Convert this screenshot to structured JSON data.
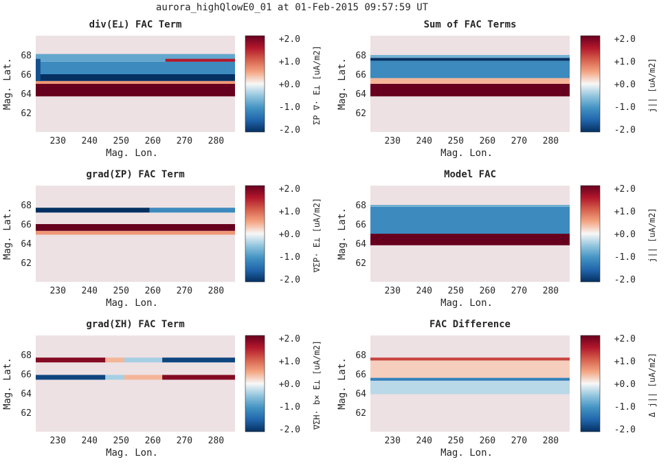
{
  "suptitle": "aurora_highQlowE0_01 at 01-Feb-2015 09:57:59 UT",
  "colors": {
    "background": "#ede1e3",
    "positive_max": "#67001f",
    "negative_max": "#053061",
    "neutral": "#f7f7f7"
  },
  "chart_data": [
    {
      "type": "heatmap",
      "title": "div(E⊥) FAC Term",
      "xlabel": "Mag. Lon.",
      "ylabel": "Mag. Lat.",
      "xticks": [
        "230",
        "240",
        "250",
        "260",
        "270",
        "280"
      ],
      "yticks": [
        "62",
        "64",
        "66",
        "68"
      ],
      "xlim": [
        223,
        286
      ],
      "ylim": [
        60,
        70
      ],
      "colorbar": {
        "label": "ΣP ∇· E⊥ [uA/m2]",
        "ticks": [
          "+2.0",
          "+1.0",
          "+0.0",
          "-1.0",
          "-2.0"
        ],
        "range": [
          -2,
          2
        ],
        "colormap": "RdBu_r"
      },
      "bands": [
        {
          "lat_from": 63.7,
          "lat_to": 65.0,
          "value": 2.0,
          "lon_from": 223,
          "lon_to": 286
        },
        {
          "lat_from": 65.0,
          "lat_to": 65.3,
          "value": 0.6,
          "lon_from": 223,
          "lon_to": 286
        },
        {
          "lat_from": 65.3,
          "lat_to": 66.0,
          "value": -2.0,
          "lon_from": 223,
          "lon_to": 286
        },
        {
          "lat_from": 66.0,
          "lat_to": 67.3,
          "value": -1.1,
          "lon_from": 223,
          "lon_to": 286
        },
        {
          "lat_from": 67.3,
          "lat_to": 68.1,
          "value": -0.8,
          "lon_from": 223,
          "lon_to": 286
        },
        {
          "lat_from": 67.3,
          "lat_to": 67.6,
          "value": 1.5,
          "lon_from": 264,
          "lon_to": 286
        },
        {
          "lat_from": 65.3,
          "lat_to": 67.6,
          "value": -1.7,
          "lon_from": 223,
          "lon_to": 224.5
        }
      ]
    },
    {
      "type": "heatmap",
      "title": "Sum of FAC Terms",
      "xlabel": "Mag. Lon.",
      "ylabel": "Mag. Lat.",
      "xticks": [
        "230",
        "240",
        "250",
        "260",
        "270",
        "280"
      ],
      "yticks": [
        "62",
        "64",
        "66",
        "68"
      ],
      "xlim": [
        223,
        286
      ],
      "ylim": [
        60,
        70
      ],
      "colorbar": {
        "label": "j|| [uA/m2]",
        "ticks": [
          "+2.0",
          "+1.0",
          "+0.0",
          "-1.0",
          "-2.0"
        ],
        "range": [
          -2,
          2
        ],
        "colormap": "RdBu_r"
      },
      "bands": [
        {
          "lat_from": 63.7,
          "lat_to": 65.0,
          "value": 2.0,
          "lon_from": 223,
          "lon_to": 286
        },
        {
          "lat_from": 65.0,
          "lat_to": 65.6,
          "value": 0.4,
          "lon_from": 223,
          "lon_to": 286
        },
        {
          "lat_from": 65.6,
          "lat_to": 67.4,
          "value": -1.1,
          "lon_from": 223,
          "lon_to": 286
        },
        {
          "lat_from": 67.4,
          "lat_to": 67.7,
          "value": -2.0,
          "lon_from": 223,
          "lon_to": 286
        },
        {
          "lat_from": 67.7,
          "lat_to": 68.0,
          "value": -0.7,
          "lon_from": 223,
          "lon_to": 286
        }
      ]
    },
    {
      "type": "heatmap",
      "title": "grad(ΣP) FAC Term",
      "xlabel": "Mag. Lon.",
      "ylabel": "Mag. Lat.",
      "xticks": [
        "230",
        "240",
        "250",
        "260",
        "270",
        "280"
      ],
      "yticks": [
        "62",
        "64",
        "66",
        "68"
      ],
      "xlim": [
        223,
        286
      ],
      "ylim": [
        60,
        70
      ],
      "colorbar": {
        "label": "∇ΣP· E⊥ [uA/m2]",
        "ticks": [
          "+2.0",
          "+1.0",
          "+0.0",
          "-1.0",
          "-2.0"
        ],
        "range": [
          -2,
          2
        ],
        "colormap": "RdBu_r"
      },
      "bands": [
        {
          "lat_from": 64.9,
          "lat_to": 65.3,
          "value": 0.6,
          "lon_from": 223,
          "lon_to": 286
        },
        {
          "lat_from": 65.3,
          "lat_to": 66.0,
          "value": 2.0,
          "lon_from": 223,
          "lon_to": 286
        },
        {
          "lat_from": 67.2,
          "lat_to": 67.7,
          "value": -2.0,
          "lon_from": 223,
          "lon_to": 259
        },
        {
          "lat_from": 67.2,
          "lat_to": 67.7,
          "value": -1.1,
          "lon_from": 259,
          "lon_to": 286
        }
      ]
    },
    {
      "type": "heatmap",
      "title": "Model FAC",
      "xlabel": "Mag. Lon.",
      "ylabel": "Mag. Lat.",
      "xticks": [
        "230",
        "240",
        "250",
        "260",
        "270",
        "280"
      ],
      "yticks": [
        "62",
        "64",
        "66",
        "68"
      ],
      "xlim": [
        223,
        286
      ],
      "ylim": [
        60,
        70
      ],
      "colorbar": {
        "label": "j|| [uA/m2]",
        "ticks": [
          "+2.0",
          "+1.0",
          "+0.0",
          "-1.0",
          "-2.0"
        ],
        "range": [
          -2,
          2
        ],
        "colormap": "RdBu_r"
      },
      "bands": [
        {
          "lat_from": 63.8,
          "lat_to": 65.0,
          "value": 2.0,
          "lon_from": 223,
          "lon_to": 286
        },
        {
          "lat_from": 65.0,
          "lat_to": 67.8,
          "value": -1.1,
          "lon_from": 223,
          "lon_to": 286
        },
        {
          "lat_from": 67.8,
          "lat_to": 68.0,
          "value": -0.7,
          "lon_from": 223,
          "lon_to": 286
        }
      ]
    },
    {
      "type": "heatmap",
      "title": "grad(ΣH) FAC Term",
      "xlabel": "Mag. Lon.",
      "ylabel": "Mag. Lat.",
      "xticks": [
        "230",
        "240",
        "250",
        "260",
        "270",
        "280"
      ],
      "yticks": [
        "62",
        "64",
        "66",
        "68"
      ],
      "xlim": [
        223,
        286
      ],
      "ylim": [
        60,
        70
      ],
      "colorbar": {
        "label": "∇ΣH· b× E⊥ [uA/m2]",
        "ticks": [
          "+2.0",
          "+1.0",
          "+0.0",
          "-1.0",
          "-2.0"
        ],
        "range": [
          -2,
          2
        ],
        "colormap": "RdBu_r"
      },
      "bands": [
        {
          "lat_from": 67.2,
          "lat_to": 67.7,
          "value": 1.8,
          "lon_from": 223,
          "lon_to": 245
        },
        {
          "lat_from": 67.2,
          "lat_to": 67.7,
          "value": 0.4,
          "lon_from": 245,
          "lon_to": 251
        },
        {
          "lat_from": 67.2,
          "lat_to": 67.7,
          "value": -0.4,
          "lon_from": 251,
          "lon_to": 263
        },
        {
          "lat_from": 67.2,
          "lat_to": 67.7,
          "value": -1.8,
          "lon_from": 263,
          "lon_to": 286
        },
        {
          "lat_from": 65.4,
          "lat_to": 65.9,
          "value": -1.8,
          "lon_from": 223,
          "lon_to": 245
        },
        {
          "lat_from": 65.4,
          "lat_to": 65.9,
          "value": -0.4,
          "lon_from": 245,
          "lon_to": 251
        },
        {
          "lat_from": 65.4,
          "lat_to": 65.9,
          "value": 0.4,
          "lon_from": 251,
          "lon_to": 263
        },
        {
          "lat_from": 65.4,
          "lat_to": 65.9,
          "value": 1.8,
          "lon_from": 263,
          "lon_to": 286
        }
      ]
    },
    {
      "type": "heatmap",
      "title": "FAC Difference",
      "xlabel": "Mag. Lon.",
      "ylabel": "Mag. Lat.",
      "xticks": [
        "230",
        "240",
        "250",
        "260",
        "270",
        "280"
      ],
      "yticks": [
        "62",
        "64",
        "66",
        "68"
      ],
      "xlim": [
        223,
        286
      ],
      "ylim": [
        60,
        70
      ],
      "colorbar": {
        "label": "Δ j|| [uA/m2]",
        "ticks": [
          "+2.0",
          "+1.0",
          "+0.0",
          "-1.0",
          "-2.0"
        ],
        "range": [
          -2,
          2
        ],
        "colormap": "RdBu_r"
      },
      "bands": [
        {
          "lat_from": 63.9,
          "lat_to": 65.3,
          "value": -0.3,
          "lon_from": 223,
          "lon_to": 286
        },
        {
          "lat_from": 65.3,
          "lat_to": 65.6,
          "value": -1.2,
          "lon_from": 223,
          "lon_to": 286
        },
        {
          "lat_from": 65.6,
          "lat_to": 67.4,
          "value": 0.25,
          "lon_from": 223,
          "lon_to": 286
        },
        {
          "lat_from": 67.4,
          "lat_to": 67.7,
          "value": 1.2,
          "lon_from": 223,
          "lon_to": 286
        }
      ]
    }
  ]
}
